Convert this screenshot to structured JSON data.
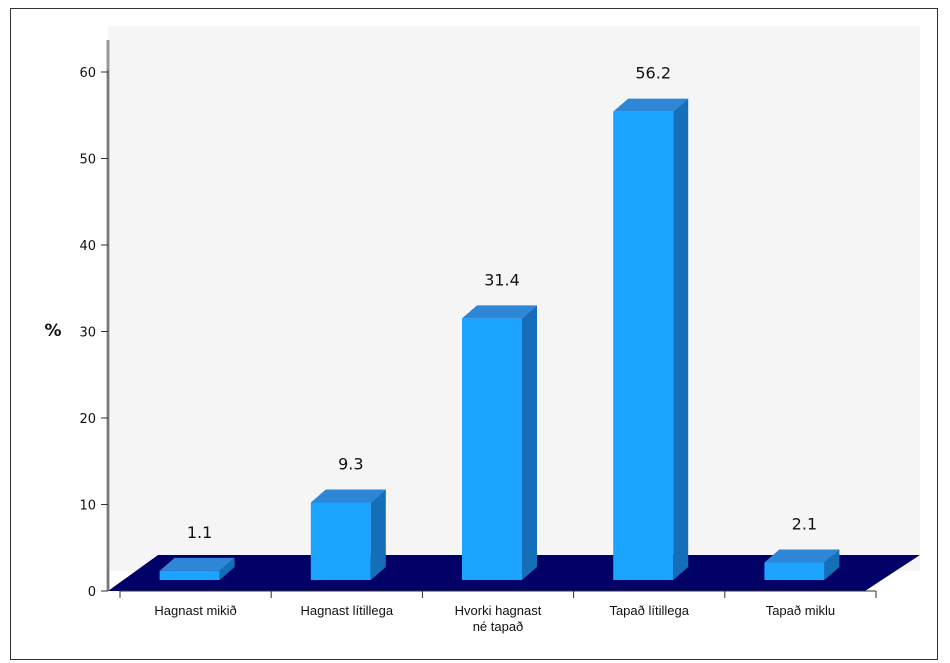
{
  "chart_data": {
    "type": "bar",
    "title": "",
    "xlabel": "",
    "ylabel": "%",
    "ylim": [
      0,
      60
    ],
    "yticks": [
      0,
      10,
      20,
      30,
      40,
      50,
      60
    ],
    "grid": false,
    "legend": "none",
    "categories": [
      [
        "Hagnast mikið"
      ],
      [
        "Hagnast lítillega"
      ],
      [
        "Hvorki hagnast",
        "né tapað"
      ],
      [
        "Tapað lítillega"
      ],
      [
        "Tapað miklu"
      ]
    ],
    "values": [
      1.1,
      9.3,
      31.4,
      56.2,
      2.1
    ],
    "value_labels": [
      "1.1",
      "9.3",
      "31.4",
      "56.2",
      "2.1"
    ],
    "colors": {
      "bar_front": "#1aa3ff",
      "bar_top": "#2e86d6",
      "bar_side": "#156fb8",
      "floor": "#000066",
      "plot_bg": "#f5f5f5",
      "wall_edge": "#999999"
    }
  }
}
